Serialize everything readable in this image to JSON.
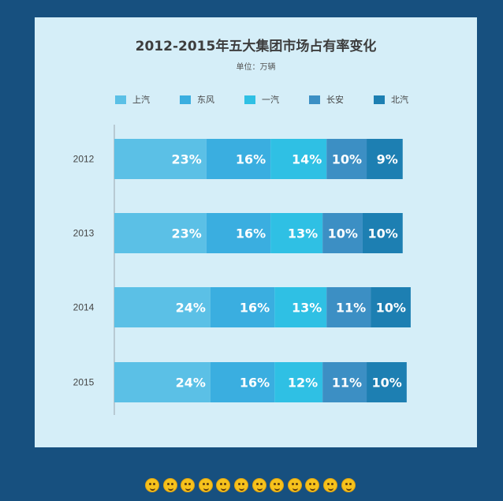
{
  "chart_data": {
    "type": "bar",
    "orientation": "horizontal",
    "stacked": true,
    "title": "2012-2015年五大集团市场占有率变化",
    "subtitle": "单位：万辆",
    "categories": [
      "2012",
      "2013",
      "2014",
      "2015"
    ],
    "series": [
      {
        "name": "上汽",
        "color": "#5bc0e6",
        "values": [
          23,
          23,
          24,
          24
        ]
      },
      {
        "name": "东风",
        "color": "#3aaee0",
        "values": [
          16,
          16,
          16,
          16
        ]
      },
      {
        "name": "一汽",
        "color": "#2fc0e4",
        "values": [
          14,
          13,
          13,
          12
        ]
      },
      {
        "name": "长安",
        "color": "#3c8fc4",
        "values": [
          10,
          10,
          11,
          11
        ]
      },
      {
        "name": "北汽",
        "color": "#1d7fb2",
        "values": [
          9,
          10,
          10,
          10
        ]
      }
    ],
    "value_suffix": "%",
    "legend_position": "top",
    "grid": false
  },
  "decoration": {
    "emoji_icons": [
      "smile-icon",
      "laugh-icon",
      "smirk-icon",
      "cool-icon",
      "surprised-icon",
      "smile-icon",
      "wink-icon",
      "laugh-icon",
      "smirk-icon",
      "cool-icon",
      "surprised-icon",
      "smile-icon"
    ]
  }
}
